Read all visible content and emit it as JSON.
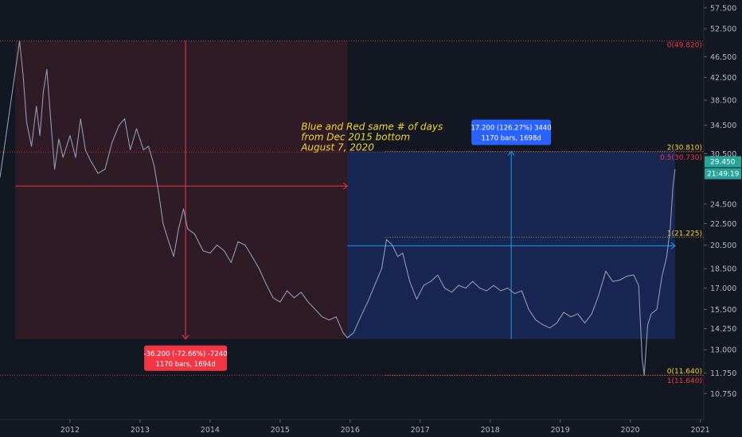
{
  "chart_data": {
    "type": "line",
    "title": "",
    "xlabel": "",
    "ylabel": "",
    "xlim": [
      2011.0,
      2021.05
    ],
    "ylim": [
      9.6,
      59.5
    ],
    "y_scale": "log",
    "grid": false,
    "x_ticks": [
      {
        "value": 2012,
        "label": "2012"
      },
      {
        "value": 2013,
        "label": "2013"
      },
      {
        "value": 2014,
        "label": "2014"
      },
      {
        "value": 2015,
        "label": "2015"
      },
      {
        "value": 2016,
        "label": "2016"
      },
      {
        "value": 2017,
        "label": "2017"
      },
      {
        "value": 2018,
        "label": "2018"
      },
      {
        "value": 2019,
        "label": "2019"
      },
      {
        "value": 2020,
        "label": "2020"
      },
      {
        "value": 2021,
        "label": "2021"
      }
    ],
    "y_ticks": [
      {
        "value": 57.5,
        "label": "57.500"
      },
      {
        "value": 52.5,
        "label": "52.500"
      },
      {
        "value": 46.5,
        "label": "46.500"
      },
      {
        "value": 42.5,
        "label": "42.500"
      },
      {
        "value": 38.5,
        "label": "38.500"
      },
      {
        "value": 34.5,
        "label": "34.500"
      },
      {
        "value": 30.5,
        "label": "30.500"
      },
      {
        "value": 24.5,
        "label": "24.500"
      },
      {
        "value": 22.5,
        "label": "22.500"
      },
      {
        "value": 20.5,
        "label": "20.500"
      },
      {
        "value": 18.5,
        "label": "18.500"
      },
      {
        "value": 17.0,
        "label": "17.000"
      },
      {
        "value": 15.5,
        "label": "15.500"
      },
      {
        "value": 14.25,
        "label": "14.250"
      },
      {
        "value": 13.0,
        "label": "13.000"
      },
      {
        "value": 11.75,
        "label": "11.750"
      },
      {
        "value": 10.75,
        "label": "10.750"
      }
    ],
    "series": [
      {
        "color": "#8f9bb3",
        "points": [
          [
            2011.0,
            27.5
          ],
          [
            2011.1,
            34.0
          ],
          [
            2011.2,
            42.0
          ],
          [
            2011.28,
            49.8
          ],
          [
            2011.33,
            43.0
          ],
          [
            2011.38,
            35.0
          ],
          [
            2011.45,
            31.5
          ],
          [
            2011.52,
            37.5
          ],
          [
            2011.57,
            33.0
          ],
          [
            2011.62,
            40.0
          ],
          [
            2011.67,
            44.0
          ],
          [
            2011.72,
            36.0
          ],
          [
            2011.78,
            28.5
          ],
          [
            2011.84,
            32.5
          ],
          [
            2011.9,
            30.0
          ],
          [
            2012.0,
            33.0
          ],
          [
            2012.08,
            30.0
          ],
          [
            2012.15,
            35.5
          ],
          [
            2012.22,
            31.0
          ],
          [
            2012.3,
            29.5
          ],
          [
            2012.4,
            28.0
          ],
          [
            2012.5,
            28.5
          ],
          [
            2012.6,
            32.0
          ],
          [
            2012.7,
            34.5
          ],
          [
            2012.78,
            35.5
          ],
          [
            2012.86,
            31.0
          ],
          [
            2012.95,
            34.0
          ],
          [
            2013.05,
            31.0
          ],
          [
            2013.12,
            31.5
          ],
          [
            2013.2,
            29.0
          ],
          [
            2013.27,
            25.5
          ],
          [
            2013.33,
            22.5
          ],
          [
            2013.4,
            21.0
          ],
          [
            2013.48,
            19.5
          ],
          [
            2013.55,
            22.0
          ],
          [
            2013.62,
            24.0
          ],
          [
            2013.68,
            22.0
          ],
          [
            2013.78,
            21.5
          ],
          [
            2013.9,
            20.0
          ],
          [
            2014.0,
            19.8
          ],
          [
            2014.1,
            20.5
          ],
          [
            2014.2,
            20.0
          ],
          [
            2014.3,
            19.0
          ],
          [
            2014.4,
            20.8
          ],
          [
            2014.5,
            20.5
          ],
          [
            2014.6,
            19.5
          ],
          [
            2014.7,
            18.5
          ],
          [
            2014.8,
            17.3
          ],
          [
            2014.9,
            16.3
          ],
          [
            2015.0,
            16.0
          ],
          [
            2015.1,
            16.8
          ],
          [
            2015.2,
            16.3
          ],
          [
            2015.3,
            16.7
          ],
          [
            2015.4,
            16.0
          ],
          [
            2015.5,
            15.5
          ],
          [
            2015.6,
            15.0
          ],
          [
            2015.7,
            14.8
          ],
          [
            2015.8,
            15.0
          ],
          [
            2015.9,
            14.0
          ],
          [
            2015.96,
            13.7
          ],
          [
            2016.05,
            14.0
          ],
          [
            2016.15,
            15.0
          ],
          [
            2016.25,
            16.0
          ],
          [
            2016.35,
            17.2
          ],
          [
            2016.45,
            18.5
          ],
          [
            2016.52,
            21.0
          ],
          [
            2016.6,
            20.5
          ],
          [
            2016.68,
            19.5
          ],
          [
            2016.75,
            19.8
          ],
          [
            2016.85,
            17.5
          ],
          [
            2016.95,
            16.2
          ],
          [
            2017.05,
            17.2
          ],
          [
            2017.15,
            17.5
          ],
          [
            2017.25,
            18.0
          ],
          [
            2017.35,
            17.0
          ],
          [
            2017.45,
            16.7
          ],
          [
            2017.55,
            17.2
          ],
          [
            2017.65,
            17.0
          ],
          [
            2017.75,
            17.5
          ],
          [
            2017.85,
            17.0
          ],
          [
            2017.95,
            16.8
          ],
          [
            2018.05,
            17.2
          ],
          [
            2018.15,
            16.8
          ],
          [
            2018.25,
            17.0
          ],
          [
            2018.35,
            16.6
          ],
          [
            2018.45,
            16.8
          ],
          [
            2018.55,
            15.5
          ],
          [
            2018.65,
            14.8
          ],
          [
            2018.75,
            14.5
          ],
          [
            2018.85,
            14.3
          ],
          [
            2018.95,
            14.6
          ],
          [
            2019.05,
            15.3
          ],
          [
            2019.15,
            15.0
          ],
          [
            2019.25,
            15.2
          ],
          [
            2019.35,
            14.6
          ],
          [
            2019.45,
            15.2
          ],
          [
            2019.55,
            16.5
          ],
          [
            2019.65,
            18.3
          ],
          [
            2019.75,
            17.5
          ],
          [
            2019.85,
            17.6
          ],
          [
            2019.95,
            17.9
          ],
          [
            2020.05,
            18.0
          ],
          [
            2020.12,
            17.2
          ],
          [
            2020.17,
            12.5
          ],
          [
            2020.2,
            11.64
          ],
          [
            2020.25,
            14.5
          ],
          [
            2020.3,
            15.2
          ],
          [
            2020.38,
            15.5
          ],
          [
            2020.45,
            17.8
          ],
          [
            2020.52,
            19.5
          ],
          [
            2020.57,
            22.0
          ],
          [
            2020.61,
            26.5
          ],
          [
            2020.64,
            28.5
          ]
        ]
      }
    ],
    "fibonacci": {
      "color": "#f23645",
      "levels": [
        {
          "value": 49.82,
          "label": "0(49.820)"
        },
        {
          "value": 30.73,
          "label": "0.5(30.730)"
        },
        {
          "value": 11.64,
          "label": "1(11.640)"
        }
      ]
    },
    "fibonacci_2": {
      "color": "#f5d328",
      "levels": [
        {
          "value": 30.81,
          "label": "2(30.810)"
        },
        {
          "value": 21.225,
          "label": "1(21.225)"
        },
        {
          "value": 11.64,
          "label": "0(11.640)"
        }
      ]
    },
    "measure_red": {
      "x_start": 2011.22,
      "x_end": 2015.96,
      "y_top": 49.82,
      "y_bottom": 13.62,
      "line_arrow_y": 26.5,
      "v_line_x": 2013.65,
      "line1": "-36.200 (-72.66%) -7240",
      "line2": "1170 bars, 1694d"
    },
    "measure_blue": {
      "x_start": 2015.96,
      "x_end": 2020.64,
      "y_top": 30.81,
      "y_bottom": 13.62,
      "line_arrow_y": 20.43,
      "v_line_x": 2018.3,
      "line1": "17.200 (126.27%) 3440",
      "line2": "1170 bars, 1698d"
    },
    "annotation": [
      "Blue and Red same # of days",
      "from Dec 2015 bottom",
      "August 7, 2020"
    ],
    "last_price": {
      "value": 29.45,
      "label": "29.450",
      "countdown": "21:49:19"
    }
  }
}
